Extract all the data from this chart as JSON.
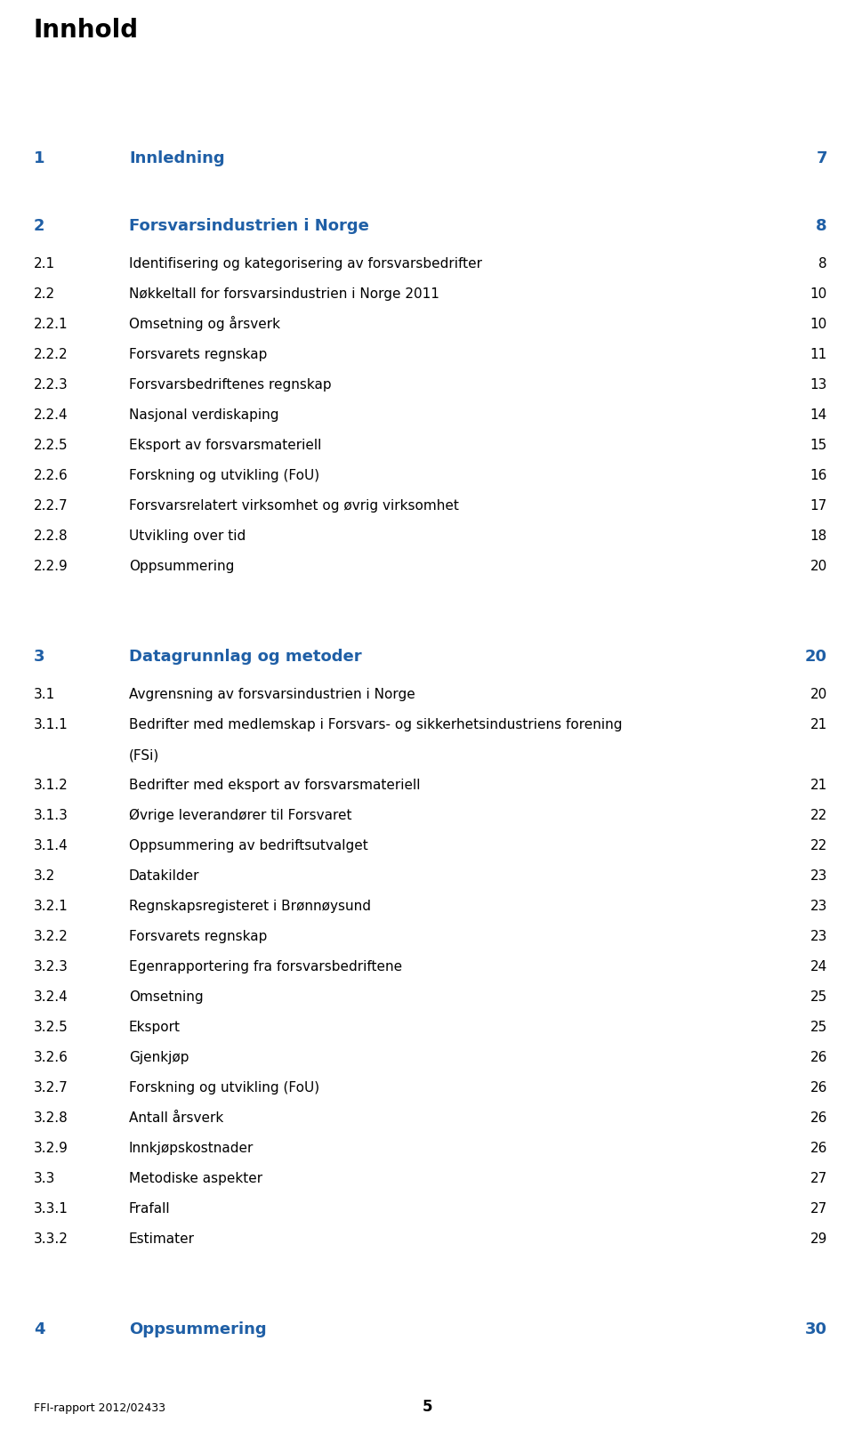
{
  "title": "Innhold",
  "title_color": "#000000",
  "section_color": "#1F5FA6",
  "normal_color": "#000000",
  "background_color": "#FFFFFF",
  "footer_left": "FFI-rapport 2012/02433",
  "footer_center": "5",
  "entries": [
    {
      "num": "1",
      "text": "Innledning",
      "page": "7",
      "level": 1,
      "color": "#1F5FA6",
      "space_before": 2,
      "space_after": 1
    },
    {
      "num": "2",
      "text": "Forsvarsindustrien i Norge",
      "page": "8",
      "level": 1,
      "color": "#1F5FA6",
      "space_before": 1,
      "space_after": 0
    },
    {
      "num": "2.1",
      "text": "Identifisering og kategorisering av forsvarsbedrifter",
      "page": "8",
      "level": 2,
      "color": "#000000",
      "space_before": 0,
      "space_after": 0
    },
    {
      "num": "2.2",
      "text": "Nøkkeltall for forsvarsindustrien i Norge 2011",
      "page": "10",
      "level": 2,
      "color": "#000000",
      "space_before": 0,
      "space_after": 0
    },
    {
      "num": "2.2.1",
      "text": "Omsetning og årsverk",
      "page": "10",
      "level": 3,
      "color": "#000000",
      "space_before": 0,
      "space_after": 0
    },
    {
      "num": "2.2.2",
      "text": "Forsvarets regnskap",
      "page": "11",
      "level": 3,
      "color": "#000000",
      "space_before": 0,
      "space_after": 0
    },
    {
      "num": "2.2.3",
      "text": "Forsvarsbedriftenes regnskap",
      "page": "13",
      "level": 3,
      "color": "#000000",
      "space_before": 0,
      "space_after": 0
    },
    {
      "num": "2.2.4",
      "text": "Nasjonal verdiskaping",
      "page": "14",
      "level": 3,
      "color": "#000000",
      "space_before": 0,
      "space_after": 0
    },
    {
      "num": "2.2.5",
      "text": "Eksport av forsvarsmateriell",
      "page": "15",
      "level": 3,
      "color": "#000000",
      "space_before": 0,
      "space_after": 0
    },
    {
      "num": "2.2.6",
      "text": "Forskning og utvikling (FoU)",
      "page": "16",
      "level": 3,
      "color": "#000000",
      "space_before": 0,
      "space_after": 0
    },
    {
      "num": "2.2.7",
      "text": "Forsvarsrelatert virksomhet og øvrig virksomhet",
      "page": "17",
      "level": 3,
      "color": "#000000",
      "space_before": 0,
      "space_after": 0
    },
    {
      "num": "2.2.8",
      "text": "Utvikling over tid",
      "page": "18",
      "level": 3,
      "color": "#000000",
      "space_before": 0,
      "space_after": 0
    },
    {
      "num": "2.2.9",
      "text": "Oppsummering",
      "page": "20",
      "level": 3,
      "color": "#000000",
      "space_before": 0,
      "space_after": 0
    },
    {
      "num": "3",
      "text": "Datagrunnlag og metoder",
      "page": "20",
      "level": 1,
      "color": "#1F5FA6",
      "space_before": 2,
      "space_after": 0
    },
    {
      "num": "3.1",
      "text": "Avgrensning av forsvarsindustrien i Norge",
      "page": "20",
      "level": 2,
      "color": "#000000",
      "space_before": 0,
      "space_after": 0
    },
    {
      "num": "3.1.1",
      "text": "Bedrifter med medlemskap i Forsvars- og sikkerhetsindustriens forening\n(FSi)",
      "page": "21",
      "level": 3,
      "color": "#000000",
      "space_before": 0,
      "space_after": 0
    },
    {
      "num": "3.1.2",
      "text": "Bedrifter med eksport av forsvarsmateriell",
      "page": "21",
      "level": 3,
      "color": "#000000",
      "space_before": 0,
      "space_after": 0
    },
    {
      "num": "3.1.3",
      "text": "Øvrige leverandører til Forsvaret",
      "page": "22",
      "level": 3,
      "color": "#000000",
      "space_before": 0,
      "space_after": 0
    },
    {
      "num": "3.1.4",
      "text": "Oppsummering av bedriftsutvalget",
      "page": "22",
      "level": 3,
      "color": "#000000",
      "space_before": 0,
      "space_after": 0
    },
    {
      "num": "3.2",
      "text": "Datakilder",
      "page": "23",
      "level": 2,
      "color": "#000000",
      "space_before": 0,
      "space_after": 0
    },
    {
      "num": "3.2.1",
      "text": "Regnskapsregisteret i Brønnøysund",
      "page": "23",
      "level": 3,
      "color": "#000000",
      "space_before": 0,
      "space_after": 0
    },
    {
      "num": "3.2.2",
      "text": "Forsvarets regnskap",
      "page": "23",
      "level": 3,
      "color": "#000000",
      "space_before": 0,
      "space_after": 0
    },
    {
      "num": "3.2.3",
      "text": "Egenrapportering fra forsvarsbedriftene",
      "page": "24",
      "level": 3,
      "color": "#000000",
      "space_before": 0,
      "space_after": 0
    },
    {
      "num": "3.2.4",
      "text": "Omsetning",
      "page": "25",
      "level": 3,
      "color": "#000000",
      "space_before": 0,
      "space_after": 0
    },
    {
      "num": "3.2.5",
      "text": "Eksport",
      "page": "25",
      "level": 3,
      "color": "#000000",
      "space_before": 0,
      "space_after": 0
    },
    {
      "num": "3.2.6",
      "text": "Gjenkjøp",
      "page": "26",
      "level": 3,
      "color": "#000000",
      "space_before": 0,
      "space_after": 0
    },
    {
      "num": "3.2.7",
      "text": "Forskning og utvikling (FoU)",
      "page": "26",
      "level": 3,
      "color": "#000000",
      "space_before": 0,
      "space_after": 0
    },
    {
      "num": "3.2.8",
      "text": "Antall årsverk",
      "page": "26",
      "level": 3,
      "color": "#000000",
      "space_before": 0,
      "space_after": 0
    },
    {
      "num": "3.2.9",
      "text": "Innkjøpskostnader",
      "page": "26",
      "level": 3,
      "color": "#000000",
      "space_before": 0,
      "space_after": 0
    },
    {
      "num": "3.3",
      "text": "Metodiske aspekter",
      "page": "27",
      "level": 2,
      "color": "#000000",
      "space_before": 0,
      "space_after": 0
    },
    {
      "num": "3.3.1",
      "text": "Frafall",
      "page": "27",
      "level": 3,
      "color": "#000000",
      "space_before": 0,
      "space_after": 0
    },
    {
      "num": "3.3.2",
      "text": "Estimater",
      "page": "29",
      "level": 3,
      "color": "#000000",
      "space_before": 0,
      "space_after": 0
    },
    {
      "num": "4",
      "text": "Oppsummering",
      "page": "30",
      "level": 1,
      "color": "#1F5FA6",
      "space_before": 2,
      "space_after": 0
    }
  ]
}
